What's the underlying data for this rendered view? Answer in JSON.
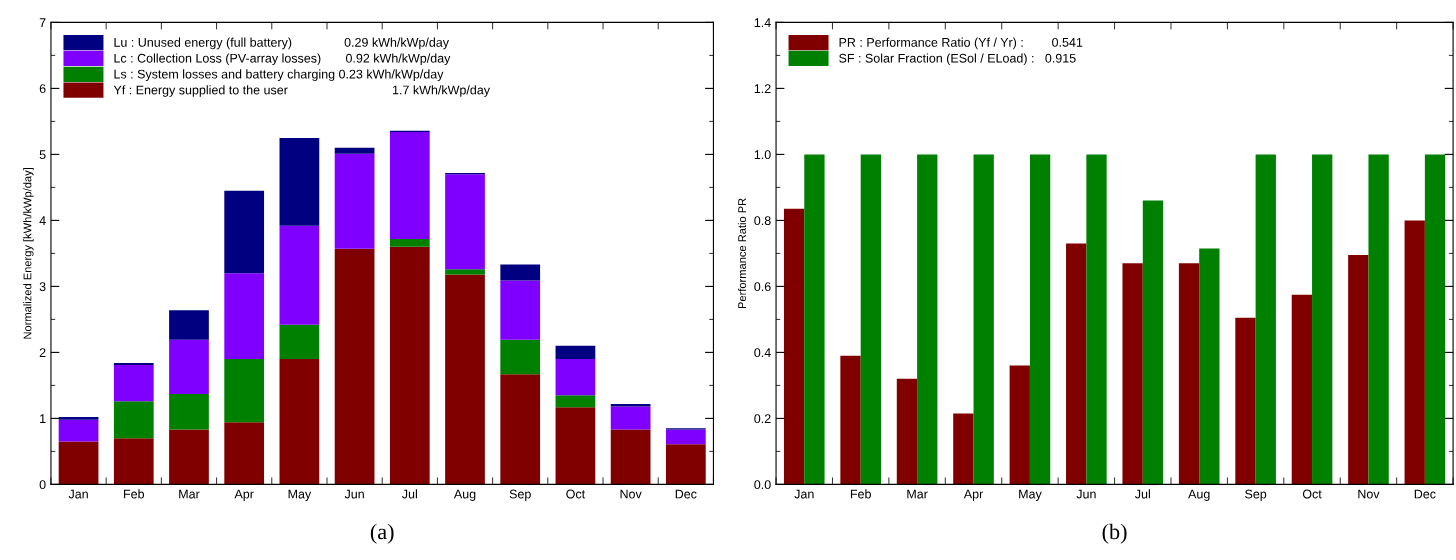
{
  "chart_data": [
    {
      "type": "bar",
      "stacked": true,
      "ylabel": "Normalized Energy [kWh/kWp/day]",
      "categories": [
        "Jan",
        "Feb",
        "Mar",
        "Apr",
        "May",
        "Jun",
        "Jul",
        "Aug",
        "Sep",
        "Oct",
        "Nov",
        "Dec"
      ],
      "series": [
        {
          "name": "Yf : Energy supplied to the user                              1.7 kWh/kWp/day",
          "color": "#800000",
          "values": [
            0.65,
            0.7,
            0.83,
            0.94,
            1.9,
            3.57,
            3.6,
            3.18,
            1.67,
            1.17,
            0.83,
            0.61
          ]
        },
        {
          "name": "Ls : System losses and battery charging 0.23 kWh/kWp/day",
          "color": "#008000",
          "values": [
            0,
            0.56,
            0.54,
            0.96,
            0.52,
            0,
            0.12,
            0.08,
            0.52,
            0.18,
            0,
            0
          ]
        },
        {
          "name": "Lc : Collection Loss (PV-array losses)       0.92 kWh/kWp/day",
          "color": "#8000ff",
          "values": [
            0.33,
            0.55,
            0.82,
            1.3,
            1.5,
            1.44,
            1.62,
            1.44,
            0.9,
            0.55,
            0.35,
            0.22
          ]
        },
        {
          "name": "Lu : Unused energy (full battery)               0.29 kWh/kWp/day",
          "color": "#000080",
          "values": [
            0.04,
            0.03,
            0.45,
            1.25,
            1.33,
            0.09,
            0.02,
            0.02,
            0.24,
            0.2,
            0.04,
            0.02
          ]
        }
      ],
      "ylim": [
        0,
        7
      ],
      "yticks": [
        0,
        1,
        2,
        3,
        4,
        5,
        6,
        7
      ],
      "legend": "top left",
      "grid": false,
      "annotations": [
        "(a)"
      ]
    },
    {
      "type": "bar",
      "ylabel": "Performance Ratio PR",
      "categories": [
        "Jan",
        "Feb",
        "Mar",
        "Apr",
        "May",
        "Jun",
        "Jul",
        "Aug",
        "Sep",
        "Oct",
        "Nov",
        "Dec"
      ],
      "series": [
        {
          "name": "PR : Performance Ratio (Yf / Yr) :        0.541",
          "color": "#800000",
          "values": [
            0.835,
            0.39,
            0.32,
            0.215,
            0.36,
            0.73,
            0.67,
            0.67,
            0.505,
            0.575,
            0.695,
            0.8
          ]
        },
        {
          "name": "SF : Solar Fraction (ESol / ELoad) :   0.915",
          "color": "#008000",
          "values": [
            1,
            1,
            1,
            1,
            1,
            1,
            0.86,
            0.715,
            1,
            1,
            1,
            1
          ]
        }
      ],
      "ylim": [
        0,
        1.4
      ],
      "yticks": [
        {
          "value": 0,
          "label": "0.0"
        },
        {
          "value": 0.2,
          "label": "0.2"
        },
        {
          "value": 0.4,
          "label": "0.4"
        },
        {
          "value": 0.6,
          "label": "0.6"
        },
        {
          "value": 0.8,
          "label": "0.8"
        },
        {
          "value": 1,
          "label": "1.0"
        },
        {
          "value": 1.2,
          "label": "1.2"
        },
        {
          "value": 1.4,
          "label": "1.4"
        }
      ],
      "legend": "top left",
      "grid": false,
      "annotations": [
        "(b)"
      ]
    }
  ]
}
